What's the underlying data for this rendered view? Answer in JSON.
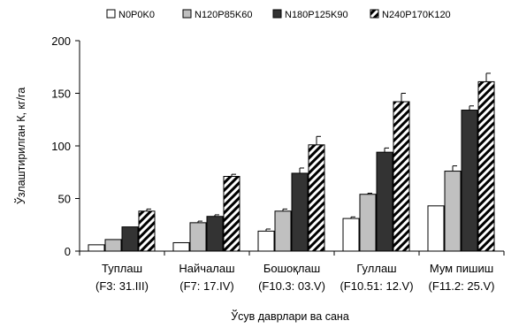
{
  "chart_data": {
    "type": "bar",
    "xlabel": "Ўсув даврлари ва сана",
    "ylabel": "Ўзлаштирилган К, кг/га",
    "ylim": [
      0,
      200
    ],
    "yticks": [
      "0",
      "50",
      "100",
      "150",
      "200"
    ],
    "legend_position": "top",
    "categories": [
      [
        "Туплаш",
        "(F3: 31.III)"
      ],
      [
        "Найчалаш",
        "(F7: 17.IV)"
      ],
      [
        "Бошоқлаш",
        "(F10.3: 03.V)"
      ],
      [
        "Гуллаш",
        "(F10.51: 12.V)"
      ],
      [
        "Мум пишиш",
        "(F11.2: 25.V)"
      ]
    ],
    "series": [
      {
        "name": "N0P0K0",
        "fill": "white",
        "values": [
          6,
          8,
          19,
          31,
          43
        ],
        "errors": [
          0,
          0,
          2,
          1.5,
          0
        ]
      },
      {
        "name": "N120P85K60",
        "fill": "lightgray",
        "values": [
          11,
          27,
          38,
          54,
          76
        ],
        "errors": [
          0,
          1.5,
          2,
          1,
          5
        ]
      },
      {
        "name": "N180P125K90",
        "fill": "darkgray",
        "values": [
          23,
          33,
          74,
          94,
          134
        ],
        "errors": [
          0,
          1.5,
          5,
          4,
          4
        ]
      },
      {
        "name": "N240P170K120",
        "fill": "hatch",
        "values": [
          38,
          71,
          101,
          142,
          161
        ],
        "errors": [
          2,
          2,
          8,
          8,
          8
        ]
      }
    ],
    "colors": {
      "white": "#ffffff",
      "lightgray": "#c0c0c0",
      "darkgray": "#333333",
      "hatch_line": "#000000"
    }
  }
}
